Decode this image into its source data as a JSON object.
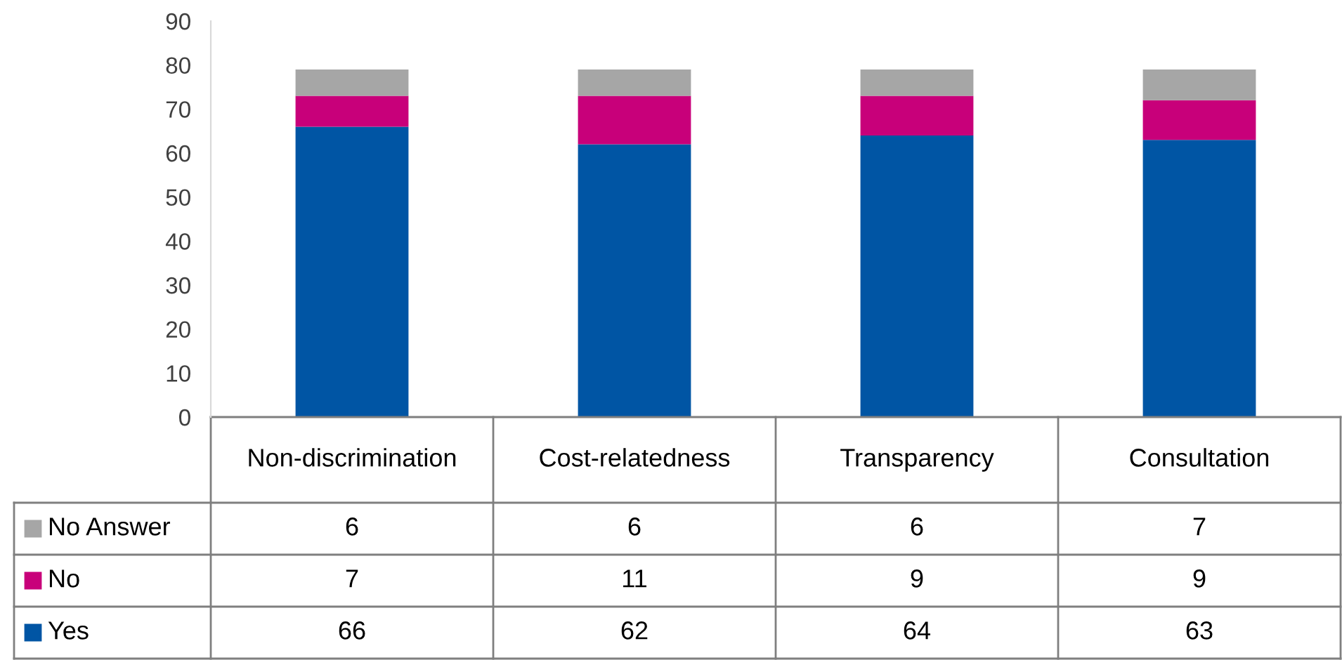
{
  "chart_data": {
    "type": "bar",
    "stacked": true,
    "data_labels": true,
    "categories": [
      "Non-discrimination",
      "Cost-relatedness",
      "Transparency",
      "Consultation"
    ],
    "series": [
      {
        "name": "Yes",
        "color": "#0055a4",
        "values": [
          66,
          62,
          64,
          63
        ]
      },
      {
        "name": "No",
        "color": "#c8007a",
        "values": [
          7,
          11,
          9,
          9
        ]
      },
      {
        "name": "No Answer",
        "color": "#a6a6a6",
        "values": [
          6,
          6,
          6,
          7
        ]
      }
    ],
    "ylim": [
      0,
      90
    ],
    "yticks": [
      0,
      10,
      20,
      30,
      40,
      50,
      60,
      70,
      80,
      90
    ],
    "grid": false,
    "legend": "bottom left"
  }
}
